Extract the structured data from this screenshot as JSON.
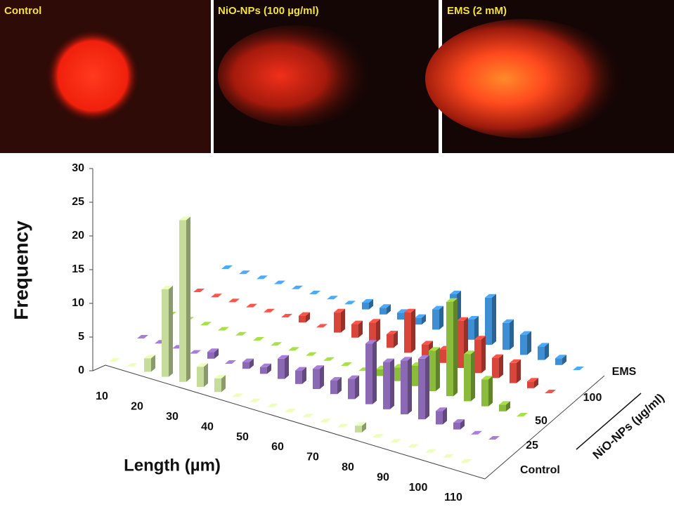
{
  "panels": [
    {
      "label": "Control"
    },
    {
      "label": "NiO-NPs (100 µg/ml)"
    },
    {
      "label": "EMS (2 mM)"
    }
  ],
  "chart_data": {
    "type": "bar3d",
    "ylabel": "Frequency",
    "xlabel": "Length (µm)",
    "zlabel": "NiO-NPs (µg/ml)",
    "ylim": [
      0,
      30
    ],
    "yticks": [
      0,
      5,
      10,
      15,
      20,
      25,
      30
    ],
    "categories": [
      10,
      null,
      20,
      null,
      30,
      null,
      40,
      null,
      50,
      null,
      60,
      null,
      70,
      null,
      80,
      null,
      90,
      null,
      100,
      null,
      110
    ],
    "series": [
      {
        "name": "Control",
        "color": "#c5dc9b",
        "values": [
          0,
          0,
          2,
          13,
          24,
          3,
          2,
          0,
          0,
          0,
          0,
          0,
          0,
          0,
          1,
          0,
          0,
          0,
          0,
          0,
          0
        ]
      },
      {
        "name": "25",
        "color": "#8c69b4",
        "values": [
          0,
          0,
          0,
          0,
          1,
          0,
          1,
          1,
          3,
          2,
          3,
          2,
          3,
          9,
          7,
          8,
          9,
          2,
          1,
          0,
          0
        ]
      },
      {
        "name": "50",
        "color": "#8bbb3b",
        "values": [
          0,
          0,
          0,
          0,
          0,
          0,
          0,
          0,
          0,
          0,
          0,
          0,
          1,
          2,
          3,
          6,
          14,
          7,
          4,
          1,
          0
        ]
      },
      {
        "name": "100",
        "color": "#d8453b",
        "values": [
          0,
          0,
          0,
          0,
          0,
          0,
          1,
          0,
          3,
          2,
          3,
          2,
          6,
          2,
          2,
          7,
          5,
          3,
          3,
          1,
          0
        ]
      },
      {
        "name": "EMS",
        "color": "#3e8ed3",
        "values": [
          0,
          0,
          0,
          0,
          0,
          0,
          0,
          0,
          1,
          1,
          1,
          1,
          3,
          6,
          3,
          7,
          4,
          3,
          2,
          1,
          0
        ]
      }
    ]
  }
}
